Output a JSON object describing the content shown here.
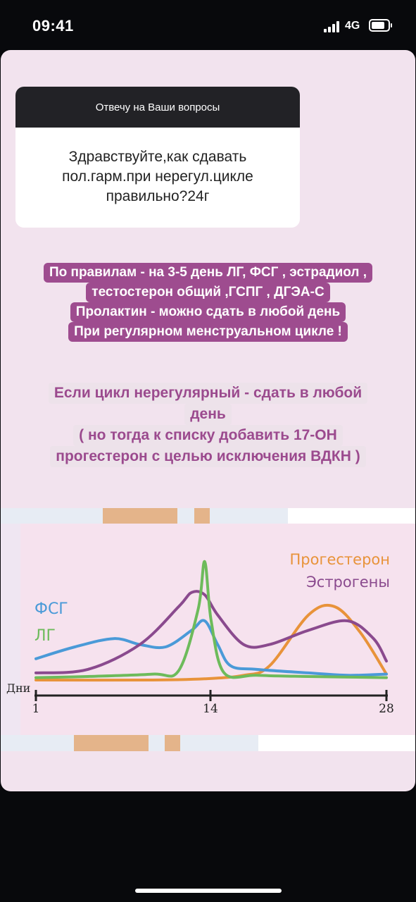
{
  "status_bar": {
    "time": "09:41",
    "network": "4G"
  },
  "question_box": {
    "header": "Отвечу на Ваши вопросы",
    "text_lines": [
      "Здравствуйте,как сдавать",
      "пол.гарм.при нерегул.цикле",
      "правильно?24г"
    ]
  },
  "answer_1": {
    "lines": [
      "По правилам - на 3-5 день ЛГ, ФСГ , эстрадиол ,",
      "тестостерон общий ,ГСПГ , ДГЭА-С",
      "Пролактин - можно сдать в любой день",
      "При регулярном менструальном цикле !"
    ]
  },
  "answer_2": {
    "lines": [
      "Если цикл нерегулярный - сдать в любой",
      "день",
      "( но тогда к списку добавить 17-ОН",
      "прогестерон с целью исключения ВДКН )"
    ]
  },
  "chart_data": {
    "type": "line",
    "xlabel": "Дни",
    "ticks": [
      "1",
      "14",
      "28"
    ],
    "series": [
      {
        "name": "ФСГ",
        "color": "#4a9ad8",
        "x": [
          1,
          4,
          7,
          9,
          11,
          13,
          14,
          15,
          16,
          18,
          22,
          25,
          28
        ],
        "y": [
          0.18,
          0.28,
          0.35,
          0.3,
          0.28,
          0.42,
          0.5,
          0.3,
          0.12,
          0.09,
          0.06,
          0.04,
          0.05
        ]
      },
      {
        "name": "ЛГ",
        "color": "#6dbb5b",
        "x": [
          1,
          5,
          10,
          12,
          13.5,
          14,
          14.5,
          15.5,
          18,
          22,
          28
        ],
        "y": [
          0.02,
          0.03,
          0.05,
          0.08,
          0.6,
          1.0,
          0.5,
          0.06,
          0.04,
          0.03,
          0.02
        ]
      },
      {
        "name": "Прогестерон",
        "color": "#e8933a",
        "x": [
          1,
          10,
          14,
          17,
          19,
          22,
          24,
          26,
          28
        ],
        "y": [
          0.0,
          0.0,
          0.01,
          0.04,
          0.12,
          0.55,
          0.62,
          0.4,
          0.05
        ]
      },
      {
        "name": "Эстрогены",
        "color": "#8a4a8e",
        "x": [
          1,
          5,
          9,
          12,
          13,
          14,
          15,
          17,
          19,
          22,
          25,
          27,
          28
        ],
        "y": [
          0.06,
          0.09,
          0.3,
          0.62,
          0.74,
          0.72,
          0.55,
          0.3,
          0.3,
          0.42,
          0.5,
          0.35,
          0.16
        ]
      }
    ]
  },
  "colors": {
    "story_bg": "#f2e3ee",
    "accent_purple": "#9e4c8f",
    "progesterone_text": "#e8933a",
    "estrogen_text": "#8a4a8e",
    "fsh_text": "#4a9ad8",
    "lh_text": "#6dbb5b"
  }
}
